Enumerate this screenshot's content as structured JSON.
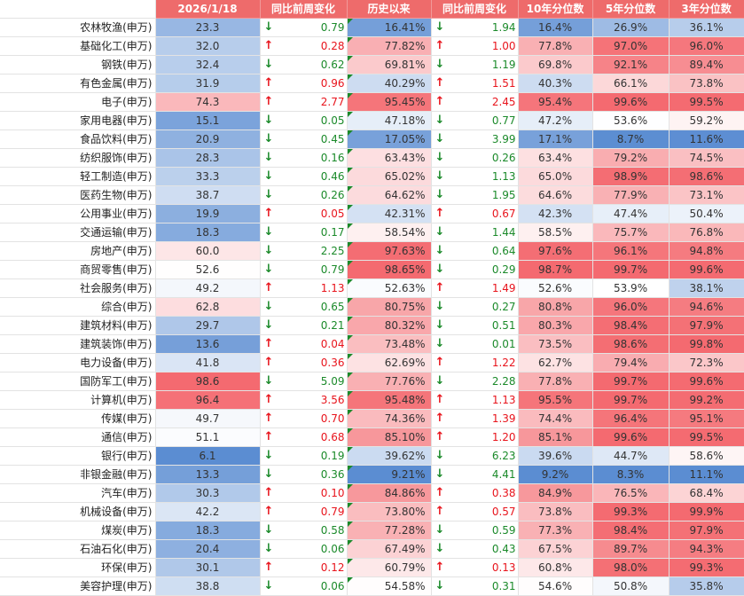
{
  "headers": {
    "date": "2026/1/18",
    "wow1": "同比前周变化",
    "hist": "历史以来",
    "wow2": "同比前周变化",
    "p10": "10年分位数",
    "p5": "5年分位数",
    "p3": "3年分位数"
  },
  "arrows": {
    "up": "↑",
    "down": "↓"
  },
  "rows": [
    {
      "name": "农林牧渔(申万)",
      "val": "23.3",
      "dir1": "down",
      "chg1": "0.79",
      "hist": "16.41%",
      "dir2": "down",
      "chg2": "1.94",
      "p10": "16.4%",
      "p5": "26.9%",
      "p3": "36.1%"
    },
    {
      "name": "基础化工(申万)",
      "val": "32.0",
      "dir1": "up",
      "chg1": "0.28",
      "hist": "77.82%",
      "dir2": "up",
      "chg2": "1.00",
      "p10": "77.8%",
      "p5": "97.0%",
      "p3": "96.0%"
    },
    {
      "name": "钢铁(申万)",
      "val": "32.4",
      "dir1": "down",
      "chg1": "0.62",
      "hist": "69.81%",
      "dir2": "down",
      "chg2": "1.19",
      "p10": "69.8%",
      "p5": "92.1%",
      "p3": "89.4%"
    },
    {
      "name": "有色金属(申万)",
      "val": "31.9",
      "dir1": "up",
      "chg1": "0.96",
      "hist": "40.29%",
      "dir2": "up",
      "chg2": "1.51",
      "p10": "40.3%",
      "p5": "66.1%",
      "p3": "73.8%"
    },
    {
      "name": "电子(申万)",
      "val": "74.3",
      "dir1": "up",
      "chg1": "2.77",
      "hist": "95.45%",
      "dir2": "up",
      "chg2": "2.45",
      "p10": "95.4%",
      "p5": "99.6%",
      "p3": "99.5%"
    },
    {
      "name": "家用电器(申万)",
      "val": "15.1",
      "dir1": "down",
      "chg1": "0.05",
      "hist": "47.18%",
      "dir2": "down",
      "chg2": "0.77",
      "p10": "47.2%",
      "p5": "53.6%",
      "p3": "59.2%"
    },
    {
      "name": "食品饮料(申万)",
      "val": "20.9",
      "dir1": "down",
      "chg1": "0.45",
      "hist": "17.05%",
      "dir2": "down",
      "chg2": "3.99",
      "p10": "17.1%",
      "p5": "8.7%",
      "p3": "11.6%"
    },
    {
      "name": "纺织服饰(申万)",
      "val": "28.3",
      "dir1": "down",
      "chg1": "0.16",
      "hist": "63.43%",
      "dir2": "down",
      "chg2": "0.26",
      "p10": "63.4%",
      "p5": "79.2%",
      "p3": "74.5%"
    },
    {
      "name": "轻工制造(申万)",
      "val": "33.3",
      "dir1": "down",
      "chg1": "0.46",
      "hist": "65.02%",
      "dir2": "down",
      "chg2": "1.13",
      "p10": "65.0%",
      "p5": "98.9%",
      "p3": "98.6%"
    },
    {
      "name": "医药生物(申万)",
      "val": "38.7",
      "dir1": "down",
      "chg1": "0.26",
      "hist": "64.62%",
      "dir2": "down",
      "chg2": "1.95",
      "p10": "64.6%",
      "p5": "77.9%",
      "p3": "73.1%"
    },
    {
      "name": "公用事业(申万)",
      "val": "19.9",
      "dir1": "up",
      "chg1": "0.05",
      "hist": "42.31%",
      "dir2": "up",
      "chg2": "0.67",
      "p10": "42.3%",
      "p5": "47.4%",
      "p3": "50.4%"
    },
    {
      "name": "交通运输(申万)",
      "val": "18.3",
      "dir1": "down",
      "chg1": "0.17",
      "hist": "58.54%",
      "dir2": "down",
      "chg2": "1.44",
      "p10": "58.5%",
      "p5": "75.7%",
      "p3": "76.8%"
    },
    {
      "name": "房地产(申万)",
      "val": "60.0",
      "dir1": "down",
      "chg1": "2.25",
      "hist": "97.63%",
      "dir2": "down",
      "chg2": "0.64",
      "p10": "97.6%",
      "p5": "96.1%",
      "p3": "94.8%"
    },
    {
      "name": "商贸零售(申万)",
      "val": "52.6",
      "dir1": "down",
      "chg1": "0.79",
      "hist": "98.65%",
      "dir2": "down",
      "chg2": "0.29",
      "p10": "98.7%",
      "p5": "99.7%",
      "p3": "99.6%"
    },
    {
      "name": "社会服务(申万)",
      "val": "49.2",
      "dir1": "up",
      "chg1": "1.13",
      "hist": "52.63%",
      "dir2": "up",
      "chg2": "1.49",
      "p10": "52.6%",
      "p5": "53.9%",
      "p3": "38.1%"
    },
    {
      "name": "综合(申万)",
      "val": "62.8",
      "dir1": "down",
      "chg1": "0.65",
      "hist": "80.75%",
      "dir2": "down",
      "chg2": "0.27",
      "p10": "80.8%",
      "p5": "96.0%",
      "p3": "94.6%"
    },
    {
      "name": "建筑材料(申万)",
      "val": "29.7",
      "dir1": "down",
      "chg1": "0.21",
      "hist": "80.32%",
      "dir2": "down",
      "chg2": "0.51",
      "p10": "80.3%",
      "p5": "98.4%",
      "p3": "97.9%"
    },
    {
      "name": "建筑装饰(申万)",
      "val": "13.6",
      "dir1": "up",
      "chg1": "0.04",
      "hist": "73.48%",
      "dir2": "down",
      "chg2": "0.01",
      "p10": "73.5%",
      "p5": "98.6%",
      "p3": "99.8%"
    },
    {
      "name": "电力设备(申万)",
      "val": "41.8",
      "dir1": "up",
      "chg1": "0.36",
      "hist": "62.69%",
      "dir2": "up",
      "chg2": "1.22",
      "p10": "62.7%",
      "p5": "79.4%",
      "p3": "72.3%"
    },
    {
      "name": "国防军工(申万)",
      "val": "98.6",
      "dir1": "down",
      "chg1": "5.09",
      "hist": "77.76%",
      "dir2": "down",
      "chg2": "2.28",
      "p10": "77.8%",
      "p5": "99.7%",
      "p3": "99.6%"
    },
    {
      "name": "计算机(申万)",
      "val": "96.4",
      "dir1": "up",
      "chg1": "3.56",
      "hist": "95.48%",
      "dir2": "up",
      "chg2": "1.13",
      "p10": "95.5%",
      "p5": "99.7%",
      "p3": "99.2%"
    },
    {
      "name": "传媒(申万)",
      "val": "49.7",
      "dir1": "up",
      "chg1": "0.70",
      "hist": "74.36%",
      "dir2": "up",
      "chg2": "1.39",
      "p10": "74.4%",
      "p5": "96.4%",
      "p3": "95.1%"
    },
    {
      "name": "通信(申万)",
      "val": "51.1",
      "dir1": "up",
      "chg1": "0.68",
      "hist": "85.10%",
      "dir2": "up",
      "chg2": "1.20",
      "p10": "85.1%",
      "p5": "99.6%",
      "p3": "99.5%"
    },
    {
      "name": "银行(申万)",
      "val": "6.1",
      "dir1": "down",
      "chg1": "0.19",
      "hist": "39.62%",
      "dir2": "down",
      "chg2": "6.23",
      "p10": "39.6%",
      "p5": "44.7%",
      "p3": "58.6%"
    },
    {
      "name": "非银金融(申万)",
      "val": "13.3",
      "dir1": "down",
      "chg1": "0.36",
      "hist": "9.21%",
      "dir2": "down",
      "chg2": "4.41",
      "p10": "9.2%",
      "p5": "8.3%",
      "p3": "11.1%"
    },
    {
      "name": "汽车(申万)",
      "val": "30.3",
      "dir1": "up",
      "chg1": "0.10",
      "hist": "84.86%",
      "dir2": "up",
      "chg2": "0.38",
      "p10": "84.9%",
      "p5": "76.5%",
      "p3": "68.4%"
    },
    {
      "name": "机械设备(申万)",
      "val": "42.2",
      "dir1": "up",
      "chg1": "0.79",
      "hist": "73.80%",
      "dir2": "up",
      "chg2": "0.57",
      "p10": "73.8%",
      "p5": "99.3%",
      "p3": "99.9%"
    },
    {
      "name": "煤炭(申万)",
      "val": "18.3",
      "dir1": "down",
      "chg1": "0.58",
      "hist": "77.28%",
      "dir2": "down",
      "chg2": "0.59",
      "p10": "77.3%",
      "p5": "98.4%",
      "p3": "97.9%"
    },
    {
      "name": "石油石化(申万)",
      "val": "20.4",
      "dir1": "down",
      "chg1": "0.06",
      "hist": "67.49%",
      "dir2": "down",
      "chg2": "0.43",
      "p10": "67.5%",
      "p5": "89.7%",
      "p3": "94.3%"
    },
    {
      "name": "环保(申万)",
      "val": "30.1",
      "dir1": "up",
      "chg1": "0.12",
      "hist": "60.79%",
      "dir2": "up",
      "chg2": "0.13",
      "p10": "60.8%",
      "p5": "98.0%",
      "p3": "99.3%"
    },
    {
      "name": "美容护理(申万)",
      "val": "38.8",
      "dir1": "down",
      "chg1": "0.06",
      "hist": "54.58%",
      "dir2": "down",
      "chg2": "0.31",
      "p10": "54.6%",
      "p5": "50.8%",
      "p3": "35.8%"
    }
  ]
}
